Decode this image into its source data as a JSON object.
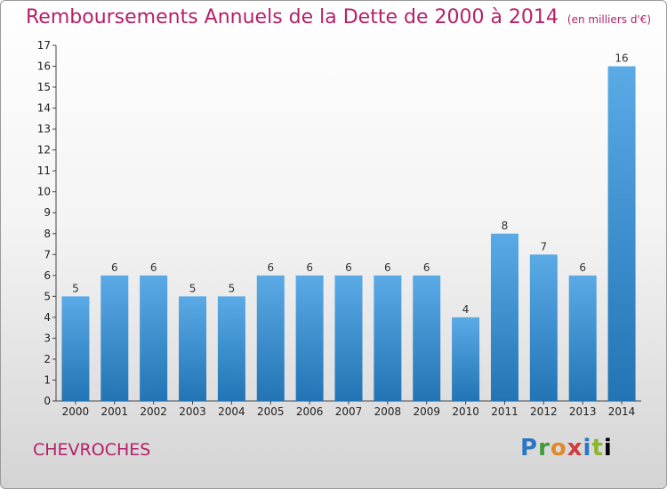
{
  "header": {
    "title": "Remboursements Annuels de la Dette de 2000 à 2014",
    "unit": "(en milliers d'€)"
  },
  "footer": {
    "city": "CHEVROCHES",
    "logo_letters": [
      "P",
      "r",
      "o",
      "x",
      "i",
      "t",
      "i"
    ]
  },
  "colors": {
    "title": "#b5206a",
    "bar_light": "#5aaae6",
    "bar_dark": "#2274b4"
  },
  "chart_data": {
    "type": "bar",
    "categories": [
      "2000",
      "2001",
      "2002",
      "2003",
      "2004",
      "2005",
      "2006",
      "2007",
      "2008",
      "2009",
      "2010",
      "2011",
      "2012",
      "2013",
      "2014"
    ],
    "values": [
      5,
      6,
      6,
      5,
      5,
      6,
      6,
      6,
      6,
      6,
      4,
      8,
      7,
      6,
      16
    ],
    "yticks": [
      "0",
      "1",
      "2",
      "3",
      "4",
      "5",
      "6",
      "7",
      "8",
      "9",
      "10",
      "11",
      "12",
      "13",
      "14",
      "15",
      "16",
      "17"
    ],
    "ylim": [
      0,
      17
    ],
    "grid": false,
    "title": "Remboursements Annuels de la Dette de 2000 à 2014",
    "xlabel": "",
    "ylabel": ""
  }
}
